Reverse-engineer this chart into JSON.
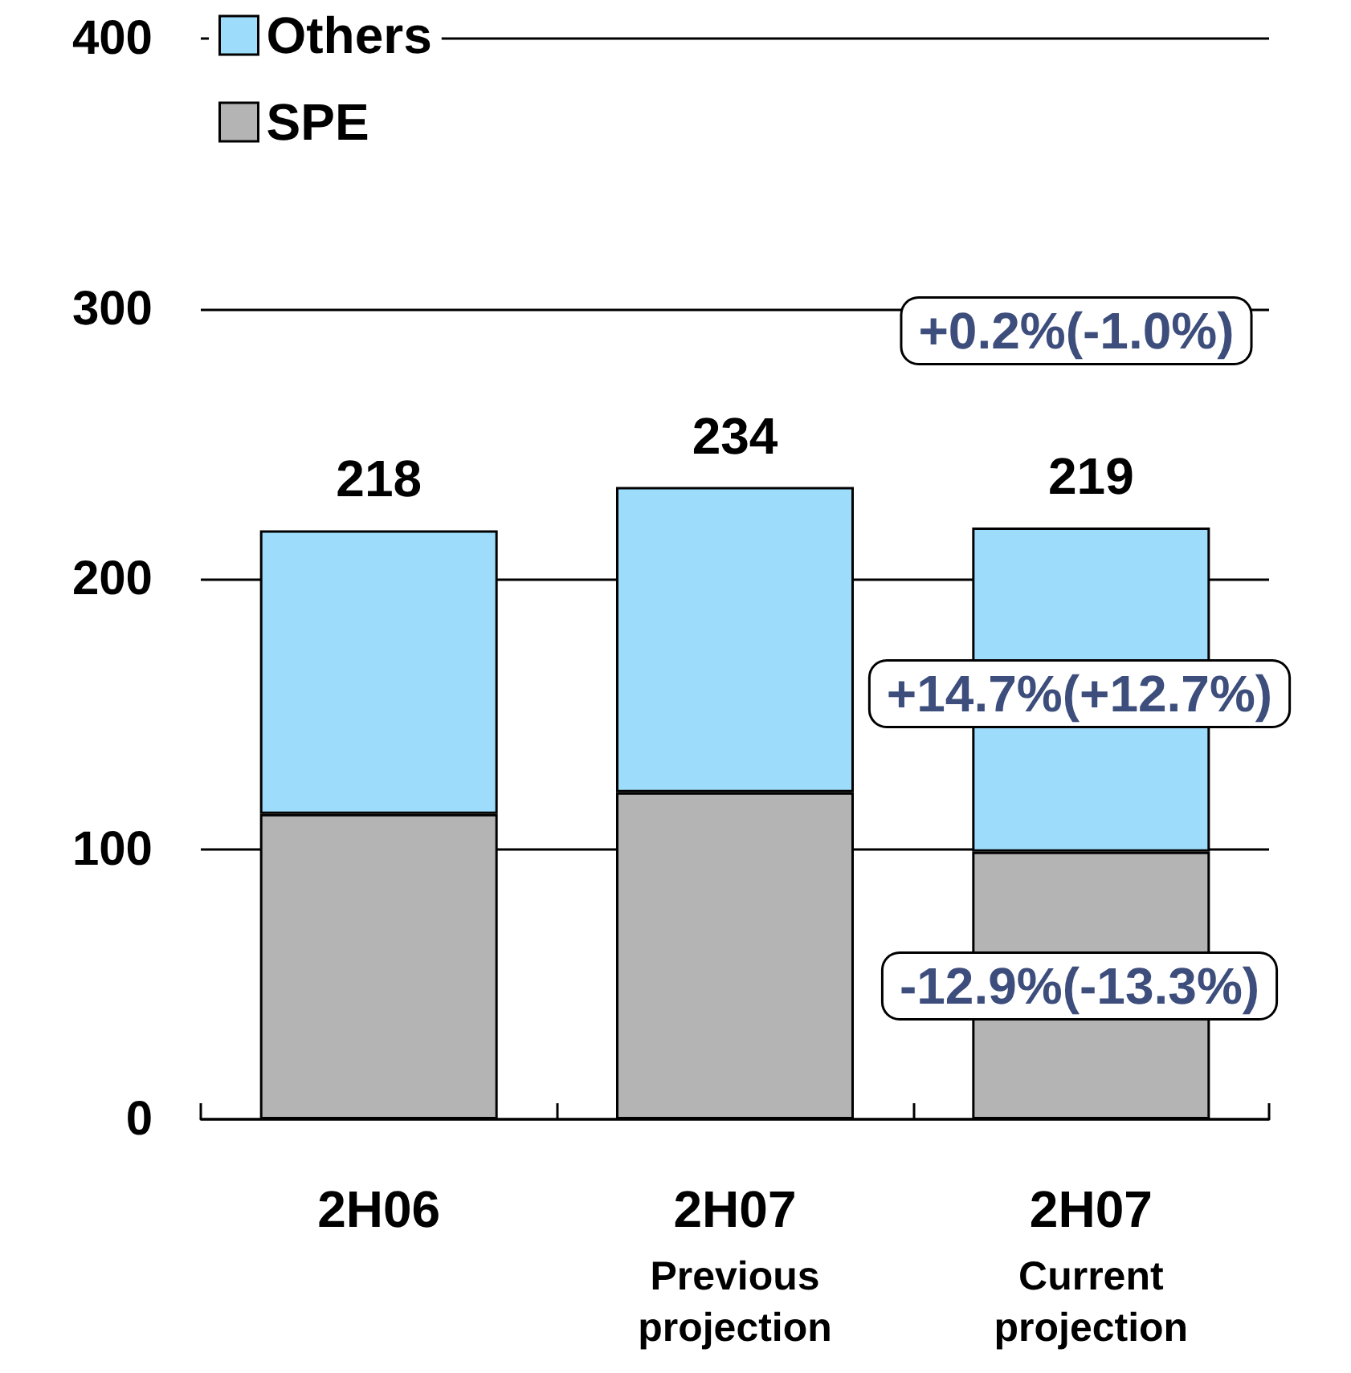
{
  "chart_data": {
    "type": "bar",
    "stacked": true,
    "categories": [
      "2H06",
      "2H07\nPrevious\nprojection",
      "2H07\nCurrent\nprojection"
    ],
    "series": [
      {
        "name": "SPE",
        "color": "#b4b4b4",
        "values": [
          113,
          121,
          99
        ]
      },
      {
        "name": "Others",
        "color": "#9edcfc",
        "values": [
          105,
          113,
          120
        ]
      }
    ],
    "totals": [
      "218",
      "234",
      "219"
    ],
    "ylim": [
      0,
      400
    ],
    "yticks": [
      0,
      100,
      200,
      300,
      400
    ],
    "grid": "y",
    "legend": "top left",
    "annotations": [
      "+0.2%(-1.0%)",
      "+14.7%(+12.7%)",
      "-12.9%(-13.3%)"
    ]
  }
}
